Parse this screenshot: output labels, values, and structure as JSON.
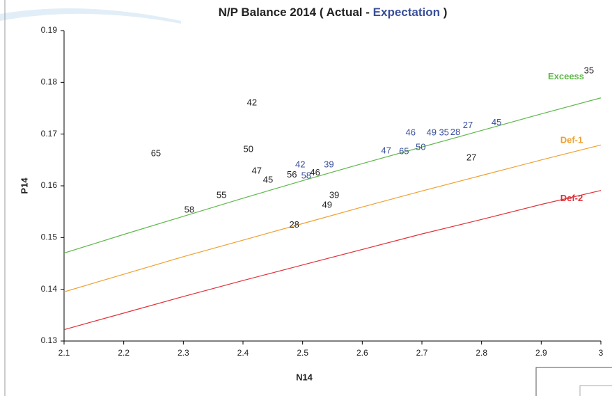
{
  "chart_data": {
    "type": "scatter",
    "title_parts": [
      "N/P Balance 2014 ( ",
      " - ",
      " )"
    ],
    "x_label": "N14",
    "y_label": "P14",
    "xlim": [
      2.1,
      3.0
    ],
    "ylim": [
      0.13,
      0.19
    ],
    "xticks": [
      2.1,
      2.2,
      2.3,
      2.4,
      2.5,
      2.6,
      2.7,
      2.8,
      2.9,
      3
    ],
    "yticks": [
      0.13,
      0.14,
      0.15,
      0.16,
      0.17,
      0.18,
      0.19
    ],
    "series": [
      {
        "name": "Actual",
        "color": "#222222",
        "x": [
          2.98,
          2.415,
          2.254,
          2.409,
          2.423,
          2.442,
          2.482,
          2.521,
          2.364,
          2.31,
          2.553,
          2.541,
          2.486,
          2.783
        ],
        "values": [
          0.1822,
          0.176,
          0.1662,
          0.167,
          0.1628,
          0.1611,
          0.1621,
          0.1625,
          0.1581,
          0.1553,
          0.1581,
          0.1562,
          0.1524,
          0.1654
        ],
        "labels": [
          35,
          42,
          65,
          50,
          47,
          45,
          56,
          46,
          55,
          58,
          39,
          49,
          28,
          27
        ]
      },
      {
        "name": "Expectation",
        "color": "#3a4f9a",
        "x": [
          2.496,
          2.506,
          2.544,
          2.64,
          2.67,
          2.681,
          2.698,
          2.716,
          2.737,
          2.756,
          2.777,
          2.825
        ],
        "values": [
          0.164,
          0.1619,
          0.164,
          0.1667,
          0.1666,
          0.1702,
          0.1674,
          0.1702,
          0.1702,
          0.1703,
          0.1716,
          0.1722
        ],
        "labels": [
          42,
          58,
          39,
          47,
          65,
          46,
          50,
          49,
          35,
          28,
          27,
          45
        ]
      }
    ],
    "curves": [
      {
        "name": "Exceess",
        "color": "#5fb84a",
        "x": [
          2.1,
          2.2,
          2.3,
          2.4,
          2.5,
          2.6,
          2.7,
          2.8,
          2.9,
          3.0
        ],
        "values": [
          0.147,
          0.1506,
          0.1541,
          0.1576,
          0.161,
          0.1643,
          0.1675,
          0.1707,
          0.1739,
          0.177
        ]
      },
      {
        "name": "Def-1",
        "color": "#f0a030",
        "x": [
          2.1,
          2.2,
          2.3,
          2.4,
          2.5,
          2.6,
          2.7,
          2.8,
          2.9,
          3.0
        ],
        "values": [
          0.1395,
          0.1429,
          0.1463,
          0.1495,
          0.1527,
          0.1559,
          0.159,
          0.162,
          0.165,
          0.1679
        ]
      },
      {
        "name": "Def-2",
        "color": "#e03038",
        "x": [
          2.1,
          2.2,
          2.3,
          2.4,
          2.5,
          2.6,
          2.7,
          2.8,
          2.9,
          3.0
        ],
        "values": [
          0.1322,
          0.1354,
          0.1386,
          0.1417,
          0.1447,
          0.1477,
          0.1507,
          0.1535,
          0.1564,
          0.1591
        ]
      }
    ]
  }
}
